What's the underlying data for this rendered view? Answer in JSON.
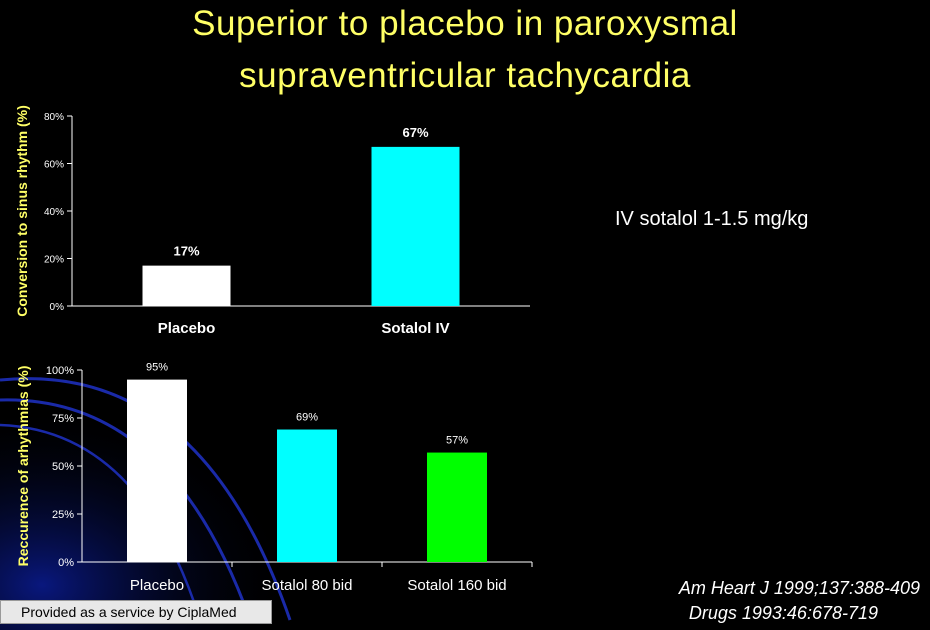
{
  "title_line1": "Superior to placebo in paroxysmal",
  "title_line2": "supraventricular tachycardia",
  "note": "IV sotalol 1-1.5 mg/kg",
  "ref1": "Am Heart J 1999;137:388-409",
  "ref2": "Drugs 1993:46:678-719",
  "footer": "Provided as a service by CiplaMed",
  "colors": {
    "title": "#ffff66",
    "axis_label": "#ffff66",
    "white_bar": "#ffffff",
    "cyan_bar": "#00ffff",
    "green_bar": "#00ff00"
  },
  "chart_data": [
    {
      "type": "bar",
      "categories": [
        "Placebo",
        "Sotalol IV"
      ],
      "values": [
        17,
        67
      ],
      "data_labels": [
        "17%",
        "67%"
      ],
      "bar_colors": [
        "#ffffff",
        "#00ffff"
      ],
      "ylabel": "Conversion to sinus rhythm (%)",
      "ylim": [
        0,
        80
      ],
      "yticks": [
        0,
        20,
        40,
        60,
        80
      ],
      "ytick_labels": [
        "0%",
        "20%",
        "40%",
        "60%",
        "80%"
      ]
    },
    {
      "type": "bar",
      "categories": [
        "Placebo",
        "Sotalol 80 bid",
        "Sotalol 160 bid"
      ],
      "values": [
        95,
        69,
        57
      ],
      "data_labels": [
        "95%",
        "69%",
        "57%"
      ],
      "bar_colors": [
        "#ffffff",
        "#00ffff",
        "#00ff00"
      ],
      "ylabel": "Reccurence of arhythmias (%)",
      "ylim": [
        0,
        100
      ],
      "yticks": [
        0,
        25,
        50,
        75,
        100
      ],
      "ytick_labels": [
        "0%",
        "25%",
        "50%",
        "75%",
        "100%"
      ]
    }
  ]
}
